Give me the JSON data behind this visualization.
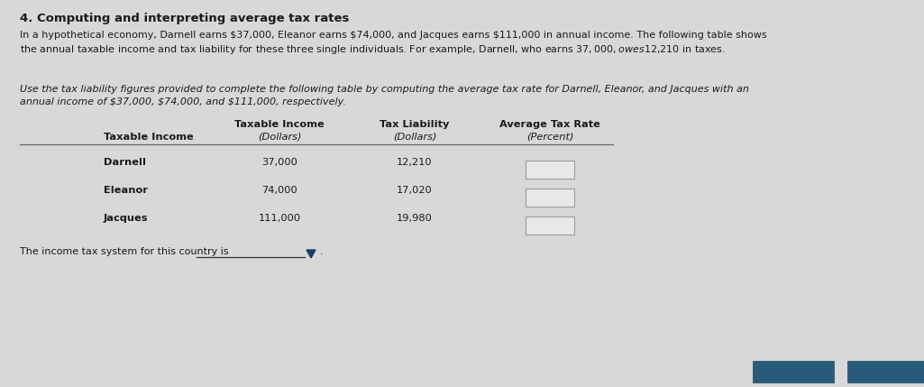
{
  "title": "4. Computing and interpreting average tax rates",
  "paragraph1_line1": "In a hypothetical economy, Darnell earns $37,000, Eleanor earns $74,000, and Jacques earns $111,000 in annual income. The following table shows",
  "paragraph1_line2": "the annual taxable income and tax liability for these three single individuals. For example, Darnell, who earns $37,000, owes $12,210 in taxes.",
  "paragraph2_line1": "Use the tax liability figures provided to complete the following table by computing the average tax rate for Darnell, Eleanor, and Jacques with an",
  "paragraph2_line2": "annual income of $37,000, $74,000, and $111,000, respectively.",
  "col_header1": [
    "Taxable Income",
    "Tax Liability",
    "Average Tax Rate"
  ],
  "col_header2": [
    "(Dollars)",
    "(Dollars)",
    "(Percent)"
  ],
  "col_label": "Taxable Income",
  "rows": [
    {
      "name": "Darnell",
      "taxable_income": "37,000",
      "tax_liability": "12,210"
    },
    {
      "name": "Eleanor",
      "taxable_income": "74,000",
      "tax_liability": "17,020"
    },
    {
      "name": "Jacques",
      "taxable_income": "111,000",
      "tax_liability": "19,980"
    }
  ],
  "footer_text": "The income tax system for this country is",
  "background_color": "#d8d8d8",
  "text_color": "#1a1a1a",
  "box_color": "#e8e8e8",
  "box_border_color": "#999999",
  "btn_color": "#2a5a7a",
  "btn_border_color": "#1a4a6a"
}
